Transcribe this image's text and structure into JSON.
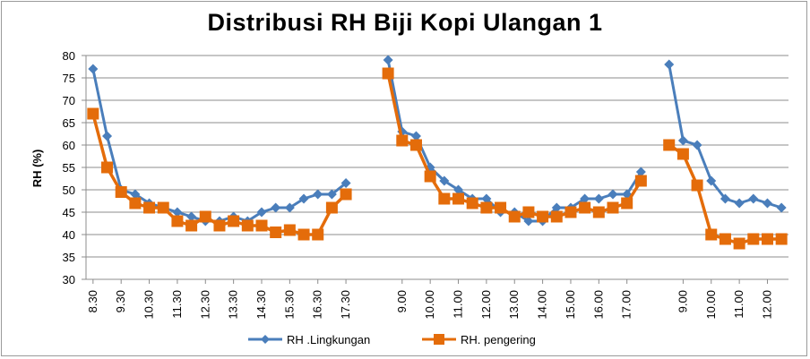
{
  "chart_data": {
    "type": "line",
    "title": "Distribusi RH Biji Kopi Ulangan 1",
    "ylabel": "RH (%)",
    "xlabel": "",
    "ylim": [
      30,
      80
    ],
    "yticks": [
      30,
      35,
      40,
      45,
      50,
      55,
      60,
      65,
      70,
      75,
      80
    ],
    "grid": true,
    "legend": "bottom",
    "colors": {
      "series1": "#4a7ebb",
      "series2": "#e46c0a"
    },
    "tick_labels": [
      {
        "index": 0,
        "label": "8.30"
      },
      {
        "index": 2,
        "label": "9.30"
      },
      {
        "index": 4,
        "label": "10.30"
      },
      {
        "index": 6,
        "label": "11.30"
      },
      {
        "index": 8,
        "label": "12.30"
      },
      {
        "index": 10,
        "label": "13.30"
      },
      {
        "index": 12,
        "label": "14.30"
      },
      {
        "index": 14,
        "label": "15.30"
      },
      {
        "index": 16,
        "label": "16.30"
      },
      {
        "index": 18,
        "label": "17.30"
      },
      {
        "index": 22,
        "label": "9.00"
      },
      {
        "index": 24,
        "label": "10.00"
      },
      {
        "index": 26,
        "label": "11.00"
      },
      {
        "index": 28,
        "label": "12.00"
      },
      {
        "index": 30,
        "label": "13.00"
      },
      {
        "index": 32,
        "label": "14.00"
      },
      {
        "index": 34,
        "label": "15.00"
      },
      {
        "index": 36,
        "label": "16.00"
      },
      {
        "index": 38,
        "label": "17.00"
      },
      {
        "index": 42,
        "label": "9.00"
      },
      {
        "index": 44,
        "label": "10.00"
      },
      {
        "index": 46,
        "label": "11.00"
      },
      {
        "index": 48,
        "label": "12.00"
      }
    ],
    "n_slots": 50,
    "series": [
      {
        "name": "RH .Lingkungan",
        "segments": [
          {
            "start": 0,
            "values": [
              77,
              62,
              50,
              49,
              47,
              46,
              45,
              44,
              43,
              43,
              44,
              43,
              45,
              46,
              46,
              48,
              49,
              49,
              51.5
            ]
          },
          {
            "start": 21,
            "values": [
              79,
              63,
              62,
              55,
              52,
              50,
              48,
              48,
              45,
              45,
              43,
              43,
              46,
              46,
              48,
              48,
              49,
              49,
              54
            ]
          },
          {
            "start": 41,
            "values": [
              78,
              61,
              60,
              52,
              48,
              47,
              48,
              47,
              46
            ]
          }
        ]
      },
      {
        "name": "RH. pengering",
        "segments": [
          {
            "start": 0,
            "values": [
              67,
              55,
              49.5,
              47,
              46,
              46,
              43,
              42,
              44,
              42,
              43,
              42,
              42,
              40.5,
              41,
              40,
              40,
              46,
              49
            ]
          },
          {
            "start": 21,
            "values": [
              76,
              61,
              60,
              53,
              48,
              48,
              47,
              46,
              46,
              44,
              45,
              44,
              44,
              45,
              46,
              45,
              46,
              47,
              52
            ]
          },
          {
            "start": 41,
            "values": [
              60,
              58,
              51,
              40,
              39,
              38,
              39,
              39,
              39
            ]
          }
        ]
      }
    ]
  }
}
